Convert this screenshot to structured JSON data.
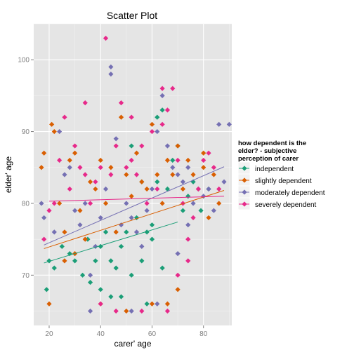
{
  "chart_data": {
    "type": "scatter",
    "title": "Scatter Plot",
    "xlabel": "carer' age",
    "ylabel": "elder' age",
    "xlim": [
      14,
      91
    ],
    "ylim": [
      63,
      105
    ],
    "x_ticks": [
      20,
      40,
      60,
      80
    ],
    "y_ticks": [
      70,
      80,
      90,
      100
    ],
    "grid": true,
    "legend": {
      "title_lines": [
        "how dependent is the",
        "elder? - subjective",
        "perception of carer"
      ],
      "placement": "right"
    },
    "series": [
      {
        "name": "independent",
        "color": "#1b9e77",
        "points": [
          [
            19,
            68
          ],
          [
            20,
            72
          ],
          [
            22,
            71
          ],
          [
            25,
            74
          ],
          [
            28,
            73
          ],
          [
            30,
            72
          ],
          [
            33,
            70
          ],
          [
            35,
            75
          ],
          [
            38,
            72
          ],
          [
            40,
            74
          ],
          [
            42,
            76
          ],
          [
            44,
            72
          ],
          [
            46,
            71
          ],
          [
            48,
            74
          ],
          [
            50,
            76
          ],
          [
            52,
            70
          ],
          [
            54,
            78
          ],
          [
            56,
            72
          ],
          [
            58,
            76
          ],
          [
            60,
            75
          ],
          [
            62,
            83
          ],
          [
            64,
            71
          ],
          [
            66,
            82
          ],
          [
            68,
            86
          ],
          [
            70,
            88
          ],
          [
            72,
            79
          ],
          [
            74,
            81
          ],
          [
            76,
            83
          ],
          [
            79,
            79
          ],
          [
            82,
            82
          ],
          [
            64,
            93
          ],
          [
            62,
            92
          ],
          [
            58,
            66
          ],
          [
            48,
            67
          ],
          [
            44,
            67
          ],
          [
            40,
            68
          ],
          [
            36,
            69
          ],
          [
            52,
            88
          ],
          [
            56,
            83
          ],
          [
            60,
            77
          ]
        ],
        "trend": {
          "x1": 18,
          "y1": 71.7,
          "x2": 70,
          "y2": 77.4
        }
      },
      {
        "name": "slightly dependent",
        "color": "#d95f02",
        "points": [
          [
            17,
            85
          ],
          [
            18,
            87
          ],
          [
            20,
            66
          ],
          [
            21,
            91
          ],
          [
            22,
            90
          ],
          [
            24,
            80
          ],
          [
            26,
            76
          ],
          [
            28,
            86
          ],
          [
            30,
            87
          ],
          [
            32,
            79
          ],
          [
            34,
            75
          ],
          [
            36,
            83
          ],
          [
            38,
            82
          ],
          [
            40,
            86
          ],
          [
            42,
            80
          ],
          [
            44,
            85
          ],
          [
            46,
            76
          ],
          [
            48,
            92
          ],
          [
            50,
            84
          ],
          [
            52,
            81
          ],
          [
            54,
            87
          ],
          [
            56,
            83
          ],
          [
            58,
            82
          ],
          [
            60,
            91
          ],
          [
            62,
            84
          ],
          [
            64,
            80
          ],
          [
            66,
            86
          ],
          [
            68,
            84
          ],
          [
            70,
            88
          ],
          [
            72,
            82
          ],
          [
            74,
            86
          ],
          [
            76,
            84
          ],
          [
            78,
            82
          ],
          [
            80,
            85
          ],
          [
            82,
            78
          ],
          [
            84,
            84
          ],
          [
            86,
            80
          ],
          [
            60,
            66
          ],
          [
            50,
            65
          ],
          [
            40,
            66
          ],
          [
            30,
            73
          ],
          [
            26,
            72
          ],
          [
            66,
            66
          ],
          [
            70,
            68
          ],
          [
            80,
            87
          ]
        ],
        "trend": {
          "x1": 18,
          "y1": 73.7,
          "x2": 88,
          "y2": 81.8
        }
      },
      {
        "name": "moderately dependent",
        "color": "#7570b3",
        "points": [
          [
            17,
            80
          ],
          [
            18,
            78
          ],
          [
            22,
            76
          ],
          [
            24,
            90
          ],
          [
            26,
            84
          ],
          [
            28,
            85
          ],
          [
            30,
            79
          ],
          [
            32,
            77
          ],
          [
            34,
            80
          ],
          [
            36,
            70
          ],
          [
            38,
            74
          ],
          [
            40,
            78
          ],
          [
            42,
            82
          ],
          [
            44,
            98
          ],
          [
            46,
            89
          ],
          [
            48,
            77
          ],
          [
            50,
            80
          ],
          [
            52,
            78
          ],
          [
            54,
            76
          ],
          [
            56,
            74
          ],
          [
            58,
            79
          ],
          [
            60,
            82
          ],
          [
            62,
            90
          ],
          [
            64,
            95
          ],
          [
            66,
            88
          ],
          [
            68,
            85
          ],
          [
            70,
            84
          ],
          [
            72,
            83
          ],
          [
            74,
            85
          ],
          [
            76,
            80
          ],
          [
            78,
            82
          ],
          [
            80,
            81
          ],
          [
            82,
            82
          ],
          [
            84,
            79
          ],
          [
            86,
            91
          ],
          [
            88,
            83
          ],
          [
            90,
            91
          ],
          [
            44,
            99
          ],
          [
            36,
            65
          ],
          [
            52,
            65
          ],
          [
            62,
            66
          ],
          [
            70,
            73
          ],
          [
            74,
            77
          ]
        ],
        "trend": {
          "x1": 18,
          "y1": 74.2,
          "x2": 88,
          "y2": 85.1
        }
      },
      {
        "name": "severely dependent",
        "color": "#e7298a",
        "points": [
          [
            18,
            75
          ],
          [
            20,
            79
          ],
          [
            22,
            80
          ],
          [
            24,
            86
          ],
          [
            26,
            92
          ],
          [
            28,
            82
          ],
          [
            30,
            88
          ],
          [
            32,
            85
          ],
          [
            34,
            94
          ],
          [
            36,
            80
          ],
          [
            38,
            83
          ],
          [
            40,
            85
          ],
          [
            42,
            103
          ],
          [
            44,
            84
          ],
          [
            46,
            88
          ],
          [
            48,
            94
          ],
          [
            50,
            85
          ],
          [
            52,
            86
          ],
          [
            54,
            84
          ],
          [
            56,
            88
          ],
          [
            58,
            80
          ],
          [
            60,
            90
          ],
          [
            62,
            82
          ],
          [
            64,
            91
          ],
          [
            66,
            93
          ],
          [
            68,
            96
          ],
          [
            70,
            86
          ],
          [
            72,
            80
          ],
          [
            74,
            75
          ],
          [
            76,
            78
          ],
          [
            78,
            82
          ],
          [
            80,
            86
          ],
          [
            82,
            87
          ],
          [
            84,
            85
          ],
          [
            86,
            82
          ],
          [
            40,
            66
          ],
          [
            46,
            65
          ],
          [
            56,
            65
          ],
          [
            66,
            65
          ],
          [
            70,
            70
          ],
          [
            74,
            72
          ],
          [
            64,
            96
          ],
          [
            52,
            92
          ],
          [
            34,
            84
          ]
        ],
        "trend": {
          "x1": 20,
          "y1": 80.3,
          "x2": 88,
          "y2": 81.0
        }
      }
    ]
  }
}
